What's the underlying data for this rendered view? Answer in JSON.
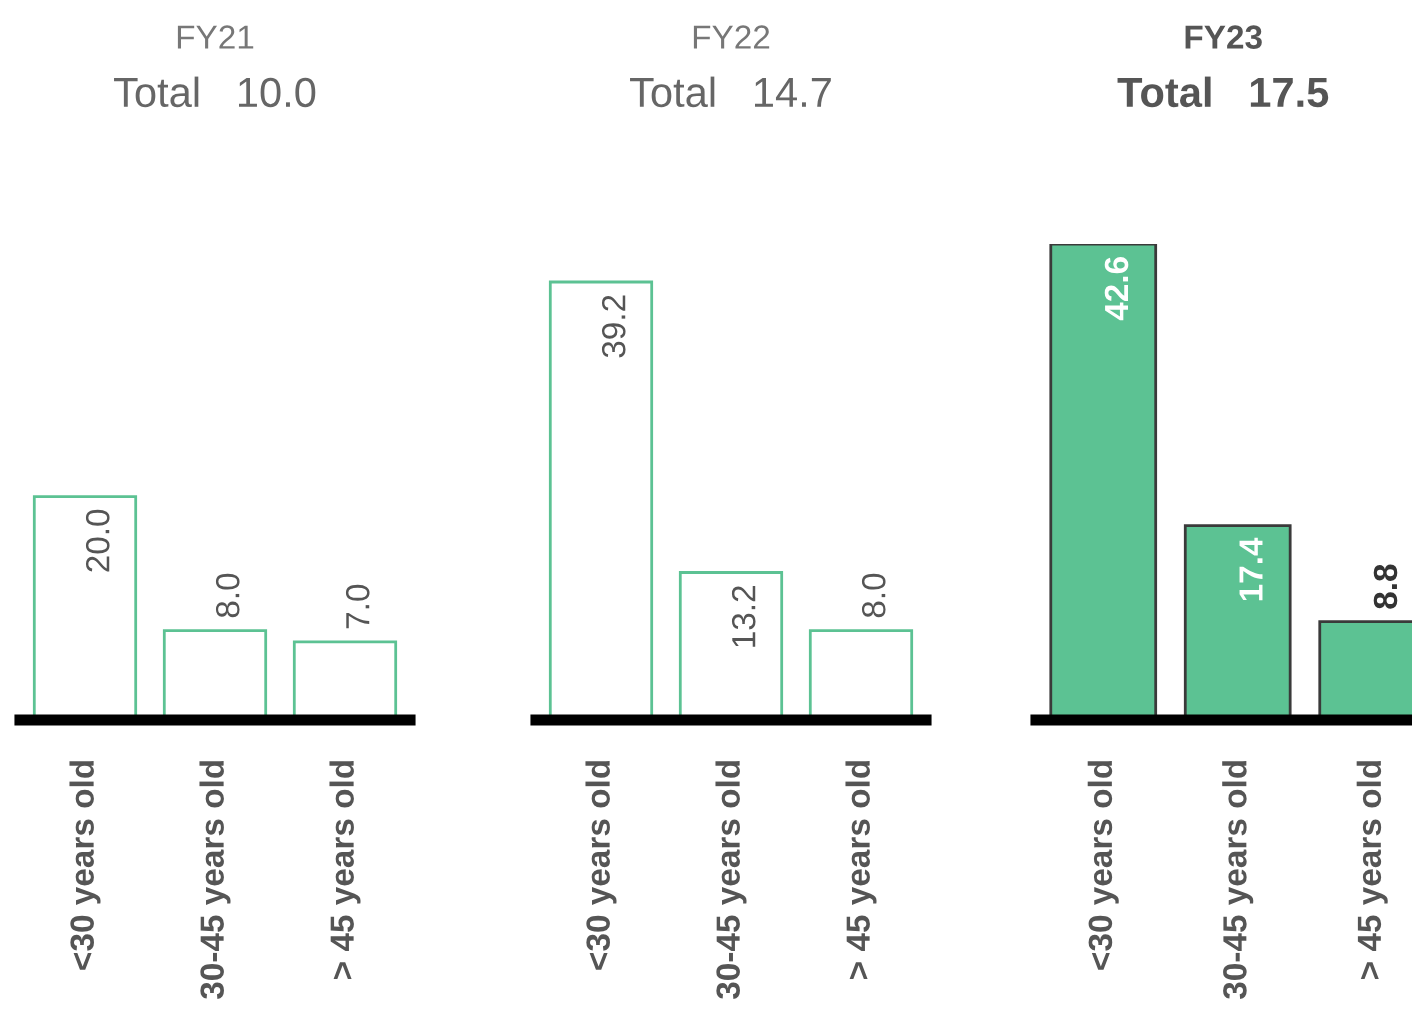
{
  "chart_data": [
    {
      "type": "bar",
      "title": "FY21",
      "subtitle": "Total   10.0",
      "categories": [
        "<30 years old",
        "30-45 years old",
        "> 45 years old"
      ],
      "series": [
        {
          "color": "#ffffff",
          "values": [
            20.0,
            8.0,
            7.0
          ],
          "value_labels": [
            "20.0",
            "8.0",
            "7.0"
          ]
        }
      ],
      "tick_labels": "x",
      "grid": false,
      "legend": false
    },
    {
      "type": "bar",
      "title": "FY22",
      "subtitle": "Total   14.7",
      "categories": [
        "<30 years old",
        "30-45 years old",
        "> 45 years old"
      ],
      "series": [
        {
          "color": "#ffffff",
          "values": [
            39.2,
            13.2,
            8.0
          ],
          "value_labels": [
            "39.2",
            "13.2",
            "8.0"
          ]
        }
      ],
      "tick_labels": "x",
      "grid": false,
      "legend": false
    },
    {
      "type": "bar",
      "title": "FY23",
      "subtitle": "Total   17.5",
      "categories": [
        "<30 years old",
        "30-45 years old",
        "> 45 years old"
      ],
      "series": [
        {
          "color": "#5cc293",
          "values": [
            42.6,
            17.4,
            8.8
          ],
          "value_labels": [
            "42.6",
            "17.4",
            "8.8"
          ]
        }
      ],
      "tick_labels": "x",
      "grid": false,
      "legend": false
    }
  ]
}
